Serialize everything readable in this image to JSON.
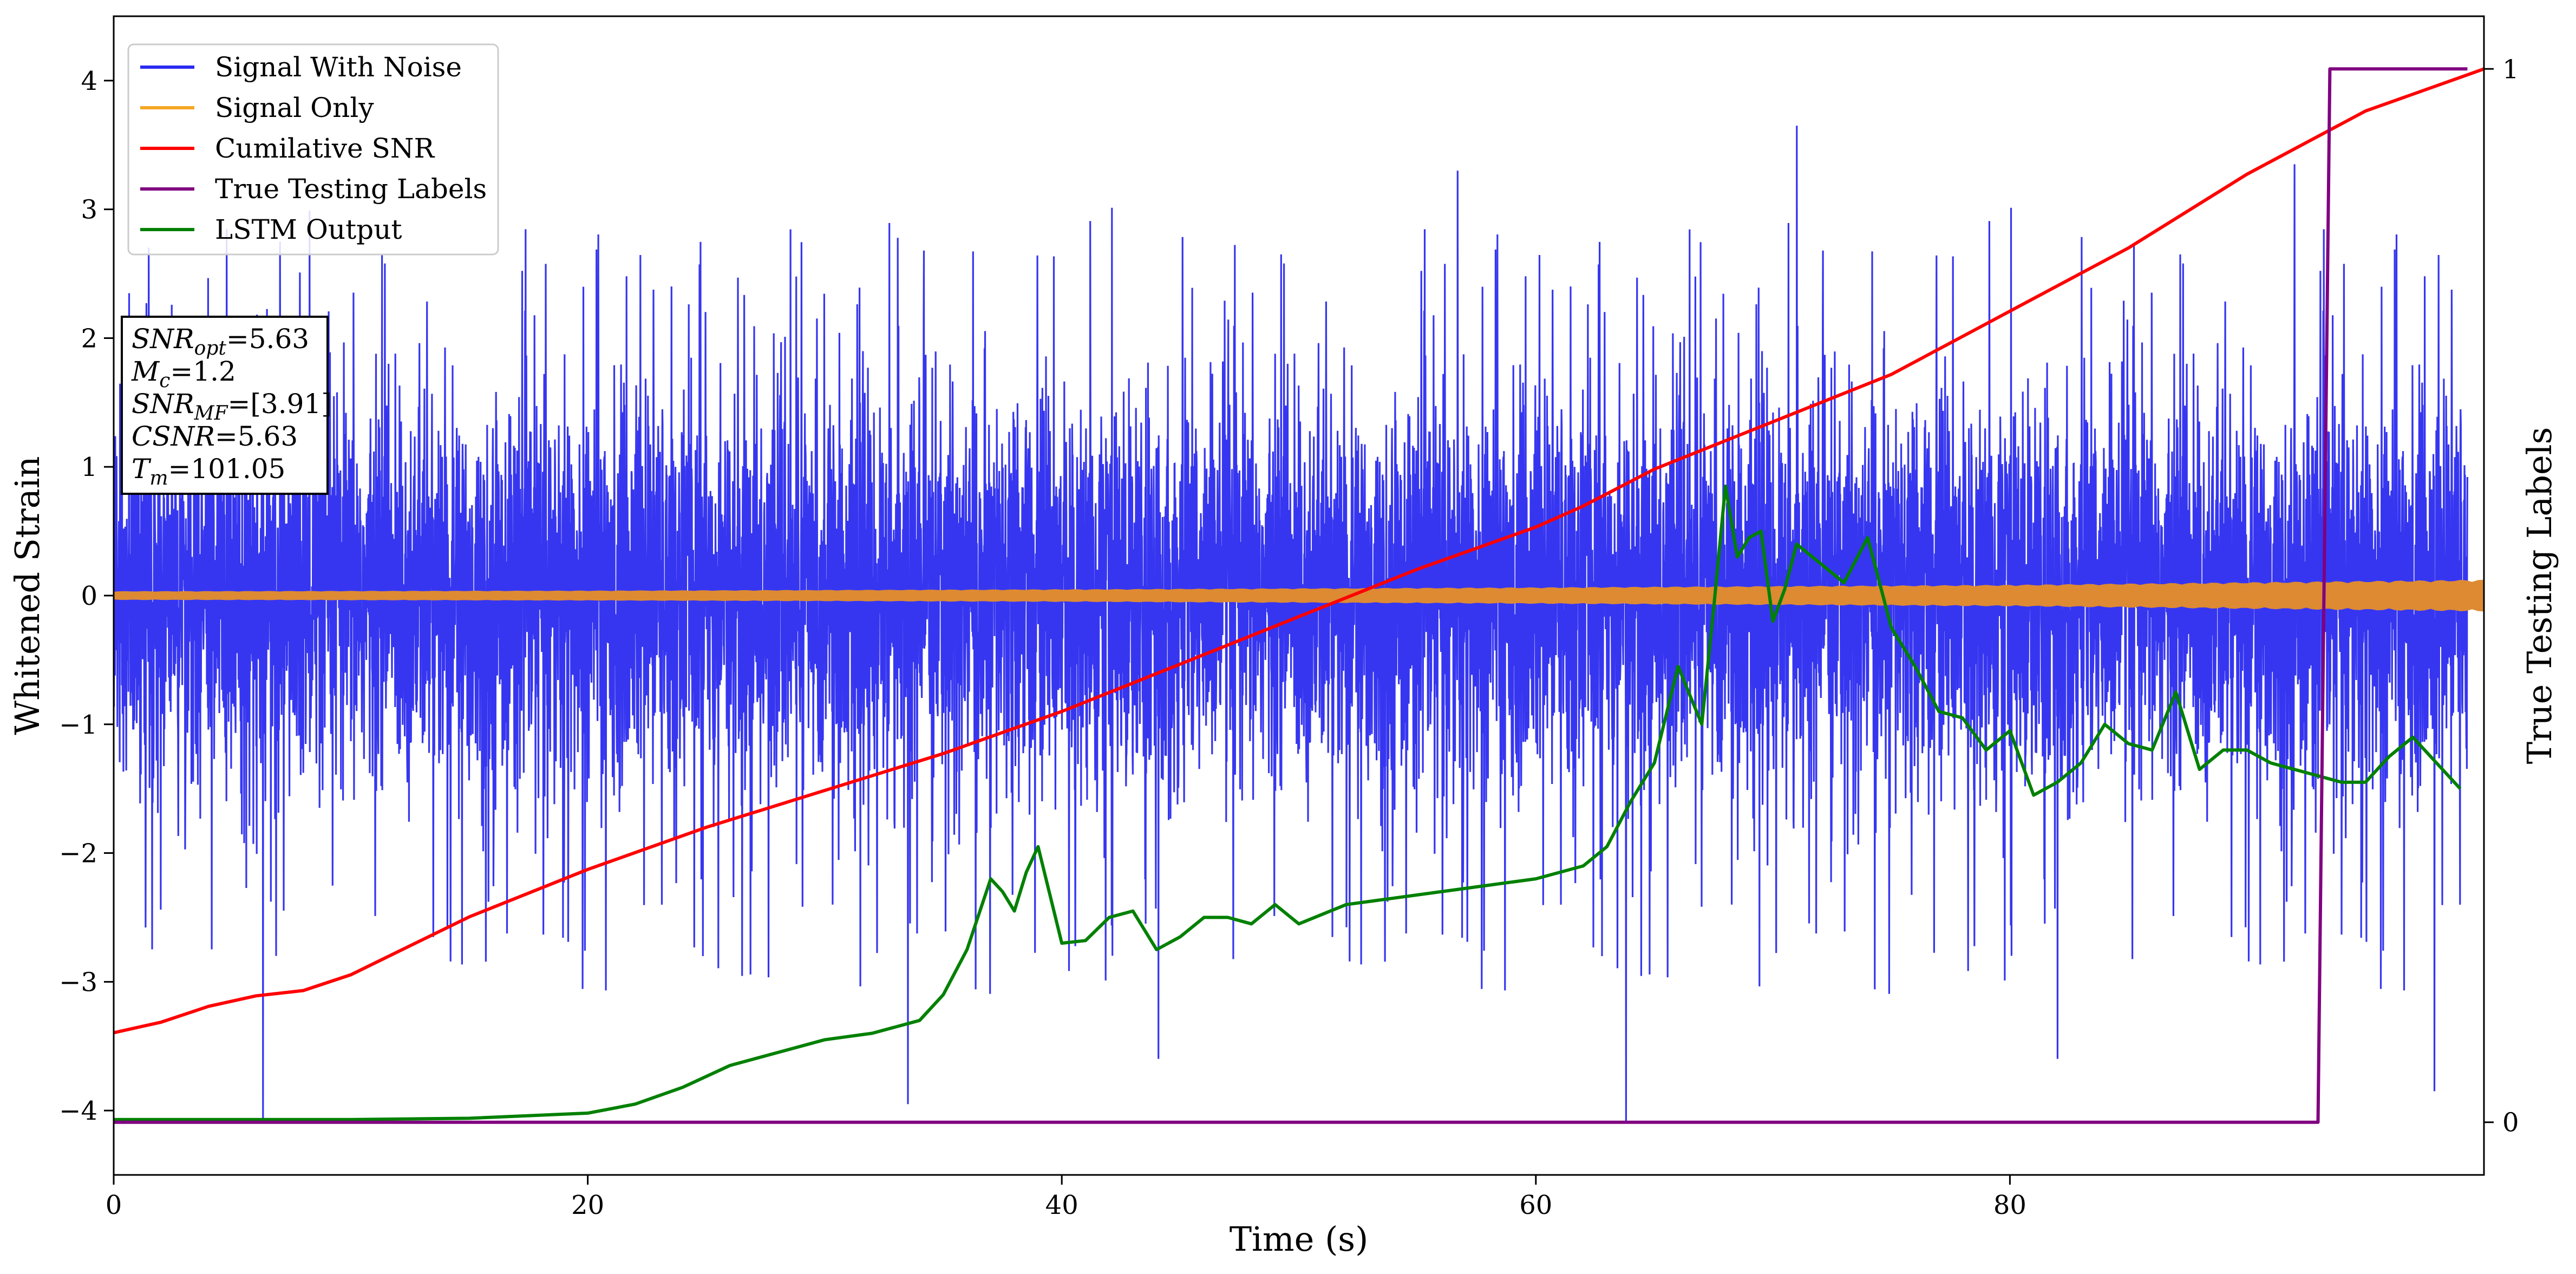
{
  "chart_data": {
    "type": "line",
    "title": "",
    "xlabel": "Time (s)",
    "ylabel": "Whitened Strain",
    "y2label": "True Testing Labels",
    "xlim": [
      0,
      100
    ],
    "ylim": [
      -4.5,
      4.5
    ],
    "y2lim": [
      -0.05,
      1.05
    ],
    "x_ticks": [
      0,
      20,
      40,
      60,
      80
    ],
    "x_tick_labels": [
      "0",
      "20",
      "40",
      "60",
      "80"
    ],
    "y_ticks": [
      -4,
      -3,
      -2,
      -1,
      0,
      1,
      2,
      3,
      4
    ],
    "y_tick_labels": [
      "−4",
      "−3",
      "−2",
      "−1",
      "0",
      "1",
      "2",
      "3",
      "4"
    ],
    "y2_ticks": [
      0,
      1
    ],
    "y2_tick_labels": [
      "0",
      "1"
    ],
    "grid": false,
    "legend_position": "upper-left",
    "legend": [
      {
        "name": "Signal With Noise",
        "color": "#2b2bf0"
      },
      {
        "name": "Signal Only",
        "color": "#f5a623"
      },
      {
        "name": "Cumilative SNR",
        "color": "#ff0000"
      },
      {
        "name": "True Testing Labels",
        "color": "#800080"
      },
      {
        "name": "LSTM Output",
        "color": "#008000"
      }
    ],
    "series": [
      {
        "name": "Signal With Noise",
        "axis": "left",
        "color": "#2b2bf0",
        "description_values": {
          "mean": 0.0,
          "std": 0.75,
          "min": -4.1,
          "max": 3.65
        },
        "spikes": [
          [
            6.3,
            -4.1
          ],
          [
            33.5,
            -3.95
          ],
          [
            63.8,
            -4.1
          ],
          [
            71.0,
            3.65
          ],
          [
            97.9,
            -3.85
          ],
          [
            56.7,
            3.3
          ],
          [
            92.0,
            3.35
          ]
        ]
      },
      {
        "name": "Signal Only",
        "axis": "left",
        "color": "#dd8a33",
        "envelope": [
          [
            0,
            0.03
          ],
          [
            20,
            0.035
          ],
          [
            40,
            0.045
          ],
          [
            60,
            0.06
          ],
          [
            80,
            0.08
          ],
          [
            100,
            0.12
          ]
        ]
      },
      {
        "name": "Cumilative SNR",
        "axis": "right",
        "color": "#ff0000",
        "x": [
          0,
          2,
          4,
          6,
          8,
          10,
          15,
          20,
          25,
          30,
          35,
          40,
          45,
          50,
          55,
          60,
          62,
          65,
          70,
          75,
          80,
          85,
          90,
          95,
          100
        ],
        "y": [
          0.085,
          0.095,
          0.11,
          0.12,
          0.125,
          0.14,
          0.195,
          0.24,
          0.28,
          0.315,
          0.35,
          0.39,
          0.435,
          0.48,
          0.525,
          0.565,
          0.585,
          0.62,
          0.665,
          0.71,
          0.77,
          0.83,
          0.9,
          0.96,
          1.0
        ]
      },
      {
        "name": "True Testing Labels",
        "axis": "right",
        "color": "#800080",
        "x": [
          0,
          93.0,
          93.5,
          99.3
        ],
        "y": [
          0,
          0,
          1,
          1
        ]
      },
      {
        "name": "LSTM Output",
        "axis": "left",
        "color": "#008000",
        "x": [
          0,
          10,
          15,
          20,
          22,
          24,
          26,
          28,
          30,
          32,
          34,
          35,
          36,
          37,
          37.5,
          38,
          38.5,
          39,
          40,
          41,
          42,
          43,
          44,
          45,
          46,
          47,
          48,
          49,
          50,
          52,
          54,
          56,
          58,
          60,
          62,
          63,
          64,
          65,
          66,
          67,
          67.5,
          68,
          68.5,
          69,
          69.5,
          70,
          70.5,
          71,
          72,
          73,
          74,
          75,
          76,
          77,
          78,
          79,
          80,
          81,
          82,
          83,
          84,
          85,
          86,
          87,
          88,
          89,
          90,
          91,
          92,
          93,
          94,
          95,
          96,
          97,
          98,
          99
        ],
        "y": [
          -4.07,
          -4.07,
          -4.06,
          -4.02,
          -3.95,
          -3.82,
          -3.65,
          -3.55,
          -3.45,
          -3.4,
          -3.3,
          -3.1,
          -2.75,
          -2.2,
          -2.3,
          -2.45,
          -2.15,
          -1.95,
          -2.7,
          -2.68,
          -2.5,
          -2.45,
          -2.75,
          -2.65,
          -2.5,
          -2.5,
          -2.55,
          -2.4,
          -2.55,
          -2.4,
          -2.35,
          -2.3,
          -2.25,
          -2.2,
          -2.1,
          -1.95,
          -1.6,
          -1.3,
          -0.55,
          -1.0,
          -0.1,
          0.85,
          0.3,
          0.45,
          0.5,
          -0.2,
          0.05,
          0.4,
          0.25,
          0.1,
          0.45,
          -0.25,
          -0.55,
          -0.9,
          -0.95,
          -1.2,
          -1.05,
          -1.55,
          -1.45,
          -1.3,
          -1.0,
          -1.15,
          -1.2,
          -0.75,
          -1.35,
          -1.2,
          -1.2,
          -1.3,
          -1.35,
          -1.4,
          -1.45,
          -1.45,
          -1.25,
          -1.1,
          -1.3,
          -1.5
        ]
      }
    ],
    "info_box": {
      "lines": [
        {
          "base": "SNR",
          "sub": "opt",
          "value": "=5.63"
        },
        {
          "base": "M",
          "sub": "c",
          "value": "=1.2"
        },
        {
          "base": "SNR",
          "sub": "MF",
          "value": "=[3.91]"
        },
        {
          "base": "CSNR",
          "sub": "",
          "value": "=5.63"
        },
        {
          "base": "T",
          "sub": "m",
          "value": "=101.05"
        }
      ]
    }
  }
}
